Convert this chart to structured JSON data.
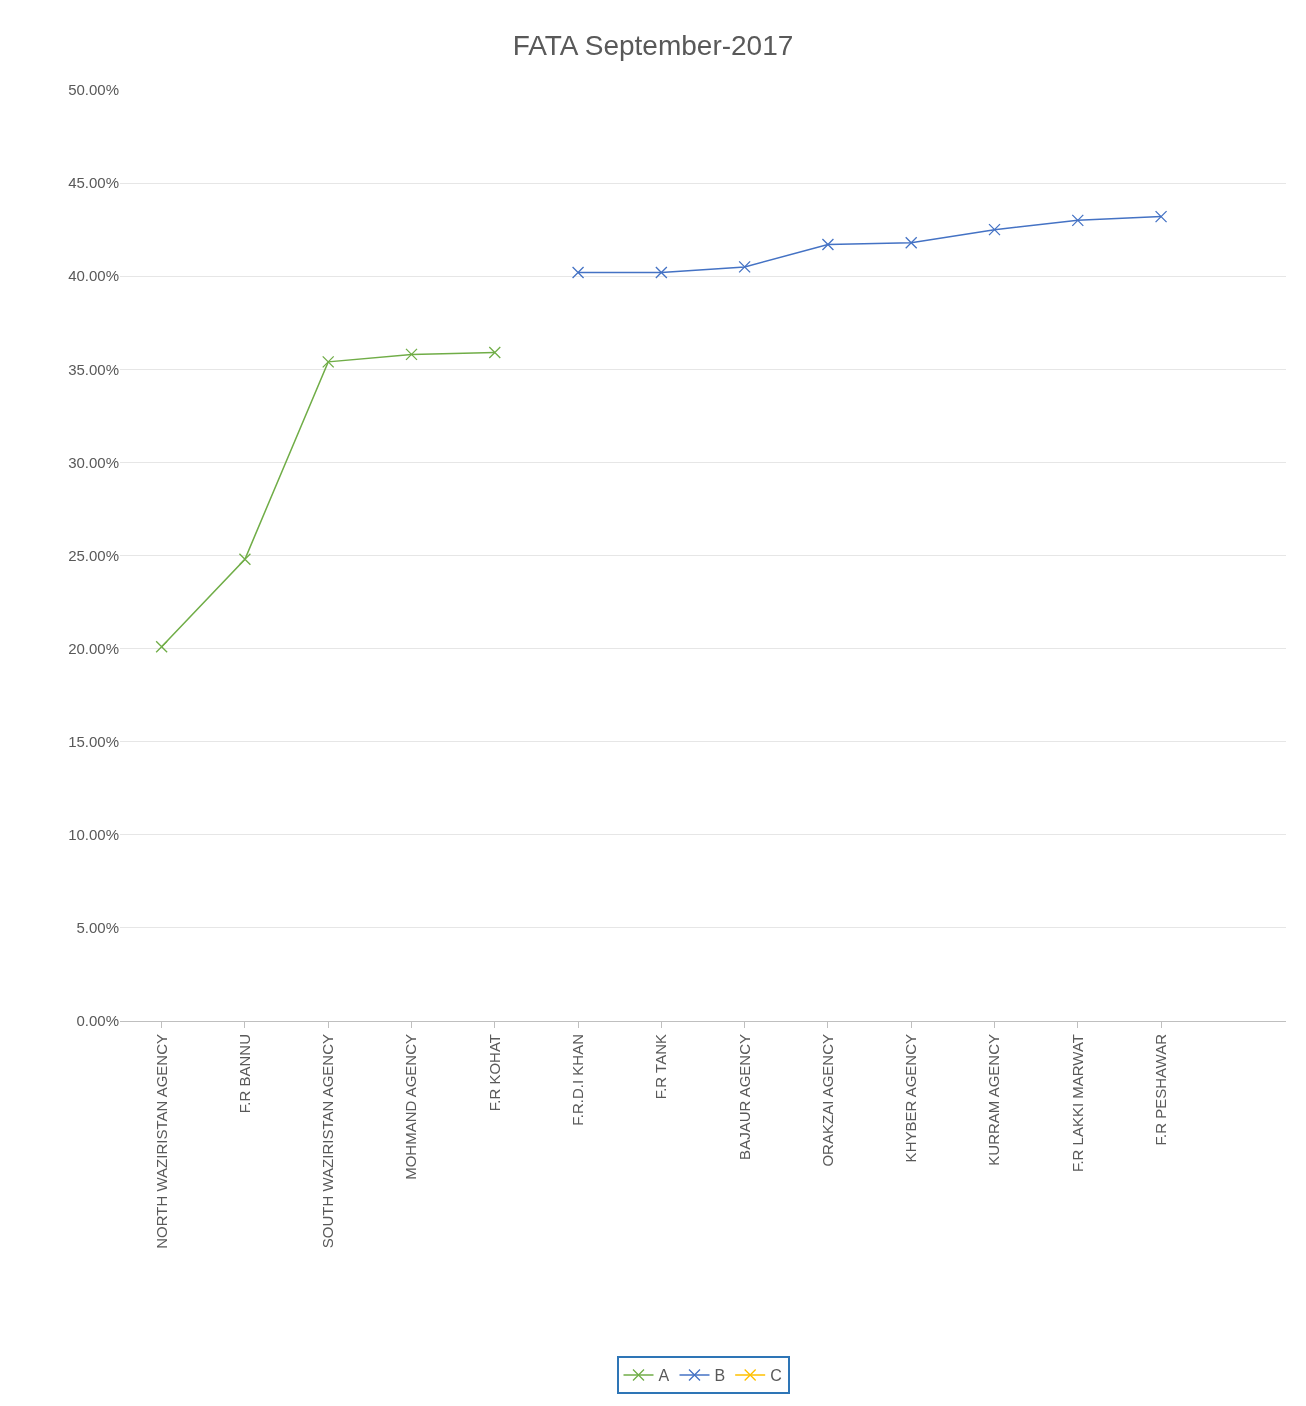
{
  "chart_data": {
    "type": "line",
    "title": "FATA September-2017",
    "categories": [
      "NORTH WAZIRISTAN AGENCY",
      "F.R BANNU",
      "SOUTH WAZIRISTAN AGENCY",
      "MOHMAND AGENCY",
      "F.R KOHAT",
      "F.R.D.I KHAN",
      "F.R TANK",
      "BAJAUR AGENCY",
      "ORAKZAI AGENCY",
      "KHYBER AGENCY",
      "KURRAM AGENCY",
      "F.R LAKKI MARWAT",
      "F.R PESHAWAR",
      null
    ],
    "series": [
      {
        "name": "A",
        "color": "#70ad47",
        "values": [
          20.1,
          24.8,
          35.4,
          35.8,
          35.9,
          null,
          null,
          null,
          null,
          null,
          null,
          null,
          null,
          null
        ]
      },
      {
        "name": "B",
        "color": "#4472c4",
        "values": [
          null,
          null,
          null,
          null,
          null,
          40.2,
          40.2,
          40.5,
          41.7,
          41.8,
          42.5,
          43.0,
          43.2,
          null
        ]
      },
      {
        "name": "C",
        "color": "#ffc000",
        "values": [
          null,
          null,
          null,
          null,
          null,
          null,
          null,
          null,
          null,
          null,
          null,
          null,
          null,
          null
        ]
      }
    ],
    "ylim": [
      0,
      50
    ],
    "yticks": [
      {
        "value": 0,
        "label": "0.00%"
      },
      {
        "value": 5,
        "label": "5.00%"
      },
      {
        "value": 10,
        "label": "10.00%"
      },
      {
        "value": 15,
        "label": "15.00%"
      },
      {
        "value": 20,
        "label": "20.00%"
      },
      {
        "value": 25,
        "label": "25.00%"
      },
      {
        "value": 30,
        "label": "30.00%"
      },
      {
        "value": 35,
        "label": "35.00%"
      },
      {
        "value": 40,
        "label": "40.00%"
      },
      {
        "value": 45,
        "label": "45.00%"
      },
      {
        "value": 50,
        "label": "50.00%"
      }
    ],
    "grid": "y",
    "legend": "bottom",
    "marker": "cross",
    "line_style": "solid"
  }
}
